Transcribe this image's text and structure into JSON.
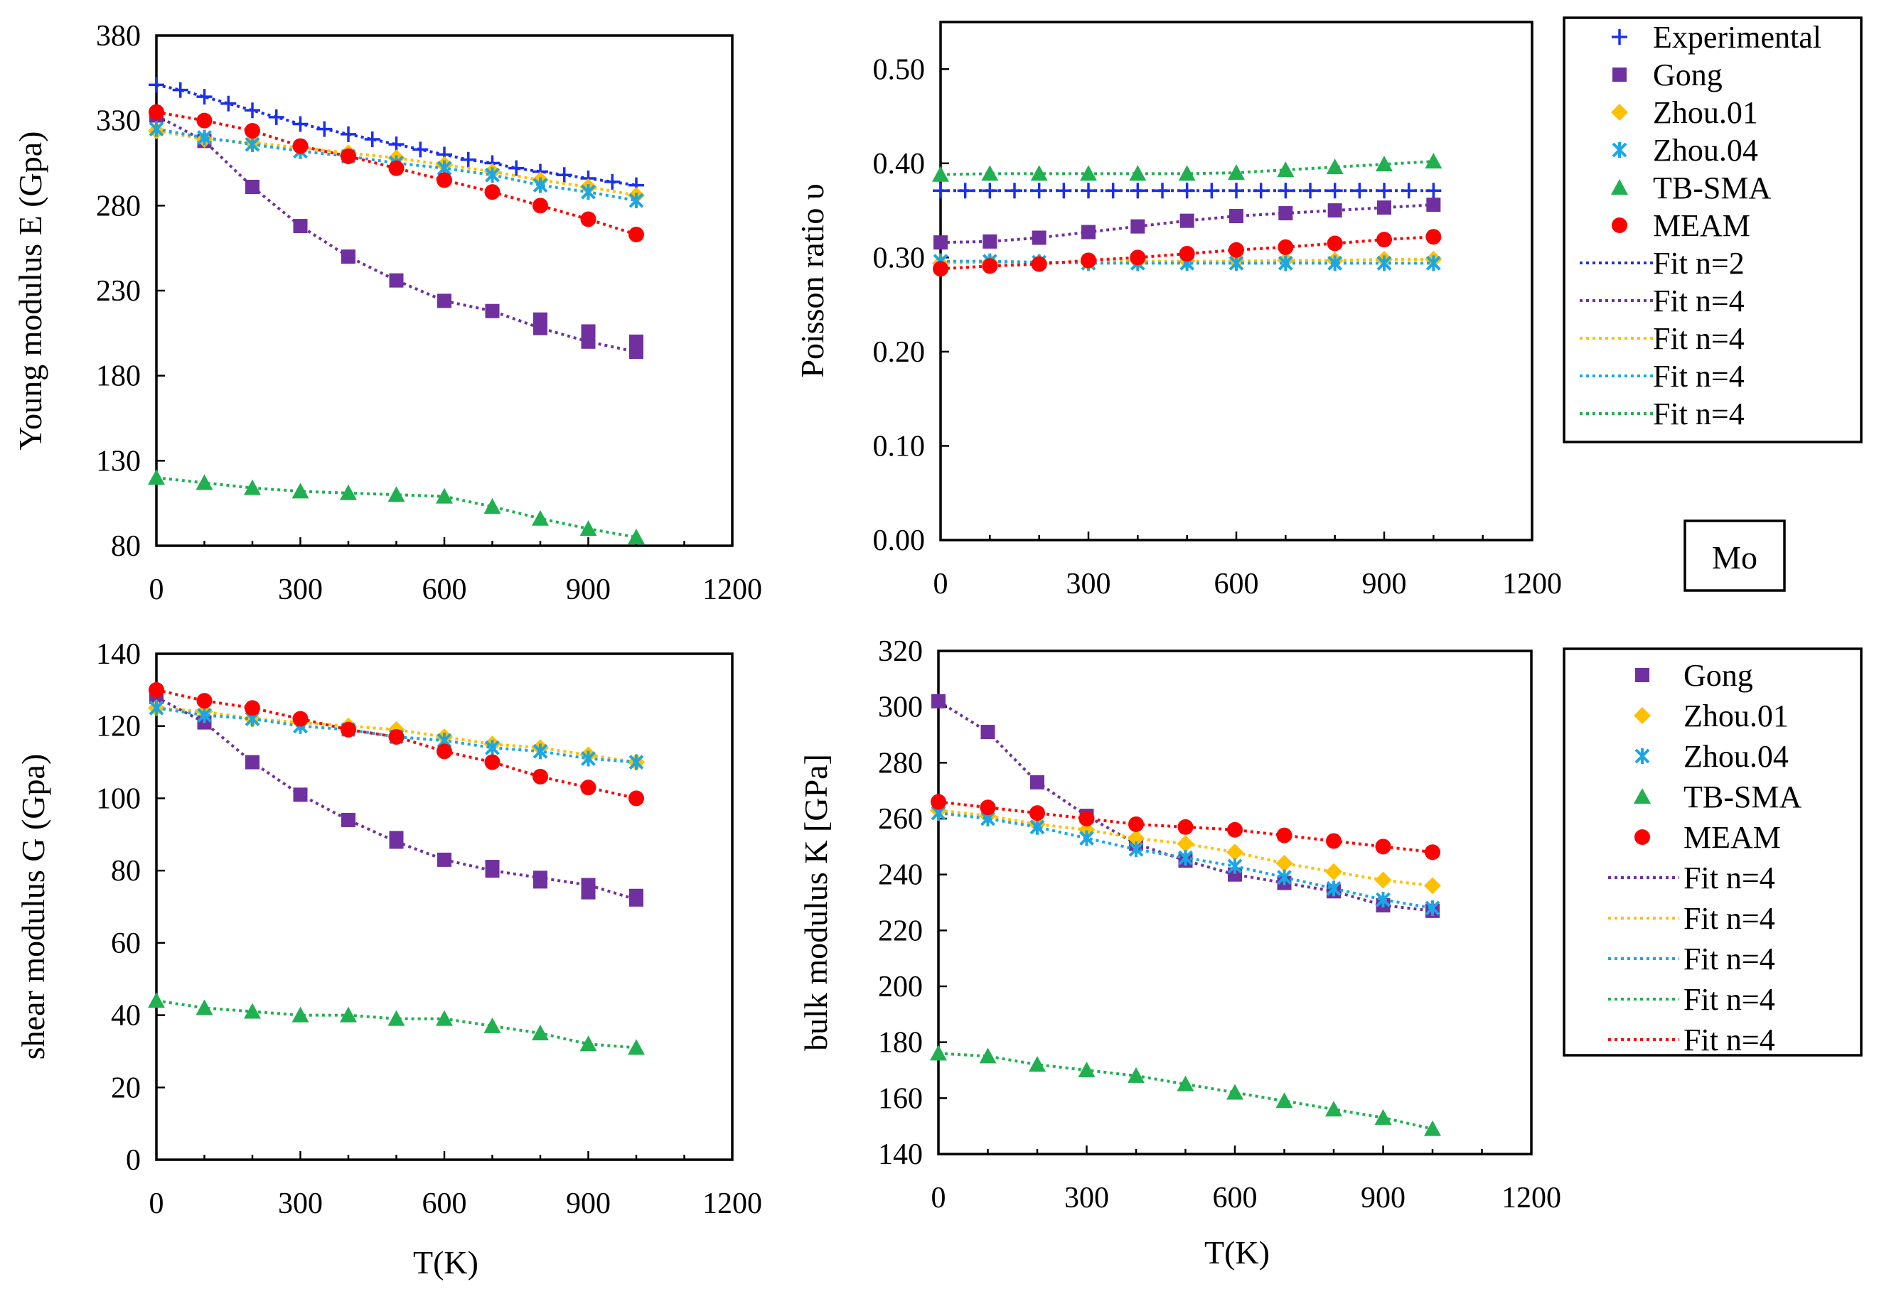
{
  "figure": {
    "material_label": "Mo",
    "legend_top": [
      "Experimental",
      "Gong",
      "Zhou.01",
      "Zhou.04",
      "TB-SMA",
      "MEAM",
      "Fit n=2",
      "Fit n=4",
      "Fit n=4",
      "Fit n=4",
      "Fit n=4"
    ],
    "legend_bottom": [
      "Gong",
      "Zhou.01",
      "Zhou.04",
      "TB-SMA",
      "MEAM",
      "Fit n=4",
      "Fit n=4",
      "Fit n=4",
      "Fit n=4",
      "Fit n=4"
    ]
  },
  "colors": {
    "experimental": "#1a2ff0",
    "gong": "#7030a0",
    "zhou01": "#ffc000",
    "zhou04": "#1aa7e6",
    "tbsma": "#20b050",
    "meam": "#ff0000",
    "fit_exp": "#1a2ff0",
    "fit_gong": "#7030a0",
    "fit_zhou01": "#ffc000",
    "fit_zhou04": "#1aa7e6",
    "fit_tbsma": "#20b050",
    "fit_meam": "#ff0000"
  },
  "chart_data": [
    {
      "id": "young",
      "type": "scatter",
      "title": "",
      "xlabel": "",
      "ylabel": "Young modulus E (Gpa)",
      "xlim": [
        0,
        1200
      ],
      "ylim": [
        80,
        380
      ],
      "xticks": [
        0,
        300,
        600,
        900,
        1200
      ],
      "yticks": [
        80,
        130,
        180,
        230,
        280,
        330,
        380
      ],
      "x": [
        0,
        100,
        200,
        300,
        400,
        500,
        600,
        700,
        800,
        900,
        1000
      ],
      "series": [
        {
          "key": "experimental",
          "name": "Experimental",
          "marker": "plus",
          "x": [
            0,
            50,
            100,
            150,
            200,
            250,
            300,
            350,
            400,
            450,
            500,
            550,
            600,
            650,
            700,
            750,
            800,
            850,
            900,
            950,
            1000
          ],
          "values": [
            351,
            348,
            344,
            340,
            336,
            332,
            328,
            325,
            322,
            319,
            316,
            313,
            310,
            307,
            305,
            302,
            300,
            298,
            296,
            294,
            292
          ]
        },
        {
          "key": "gong",
          "name": "Gong",
          "marker": "square",
          "values": [
            333,
            318,
            291,
            268,
            250,
            236,
            224,
            218,
            208,
            200,
            194
          ]
        },
        {
          "key": "gong2",
          "name": "Gong",
          "marker": "square",
          "x": [
            800,
            900,
            1000
          ],
          "values": [
            213,
            206,
            200
          ]
        },
        {
          "key": "zhou01",
          "name": "Zhou.01",
          "marker": "diamond",
          "values": [
            324,
            319,
            317,
            314,
            311,
            308,
            304,
            300,
            295,
            291,
            286
          ]
        },
        {
          "key": "zhou04",
          "name": "Zhou.04",
          "marker": "x",
          "values": [
            325,
            320,
            316,
            312,
            309,
            305,
            302,
            298,
            292,
            288,
            283
          ]
        },
        {
          "key": "tbsma",
          "name": "TB-SMA",
          "marker": "triangle",
          "values": [
            120,
            117,
            114,
            112,
            111,
            110,
            109,
            103,
            96,
            90,
            85
          ]
        },
        {
          "key": "meam",
          "name": "MEAM",
          "marker": "circle",
          "values": [
            335,
            330,
            324,
            315,
            309,
            302,
            295,
            288,
            280,
            272,
            263
          ]
        }
      ]
    },
    {
      "id": "poisson",
      "type": "scatter",
      "title": "",
      "xlabel": "",
      "ylabel": "Poisson ratio υ",
      "xlim": [
        0,
        1200
      ],
      "ylim": [
        0.0,
        0.55
      ],
      "xticks": [
        0,
        300,
        600,
        900,
        1200
      ],
      "yticks": [
        0.0,
        0.1,
        0.2,
        0.3,
        0.4,
        0.5
      ],
      "ytick_labels": [
        "0.00",
        "0.10",
        "0.20",
        "0.30",
        "0.40",
        "0.50"
      ],
      "x": [
        0,
        100,
        200,
        300,
        400,
        500,
        600,
        700,
        800,
        900,
        1000
      ],
      "series": [
        {
          "key": "experimental",
          "name": "Experimental",
          "marker": "plus",
          "x": [
            0,
            50,
            100,
            150,
            200,
            250,
            300,
            350,
            400,
            450,
            500,
            550,
            600,
            650,
            700,
            750,
            800,
            850,
            900,
            950,
            1000
          ],
          "values": [
            0.371,
            0.371,
            0.371,
            0.371,
            0.371,
            0.371,
            0.371,
            0.371,
            0.371,
            0.371,
            0.371,
            0.371,
            0.371,
            0.371,
            0.371,
            0.371,
            0.371,
            0.371,
            0.371,
            0.371,
            0.371
          ]
        },
        {
          "key": "gong",
          "name": "Gong",
          "marker": "square",
          "values": [
            0.316,
            0.317,
            0.321,
            0.327,
            0.333,
            0.339,
            0.344,
            0.347,
            0.35,
            0.353,
            0.356
          ]
        },
        {
          "key": "zhou01",
          "name": "Zhou.01",
          "marker": "diamond",
          "values": [
            0.294,
            0.295,
            0.295,
            0.295,
            0.296,
            0.296,
            0.296,
            0.297,
            0.297,
            0.298,
            0.298
          ]
        },
        {
          "key": "zhou04",
          "name": "Zhou.04",
          "marker": "x",
          "values": [
            0.296,
            0.296,
            0.295,
            0.294,
            0.294,
            0.294,
            0.294,
            0.294,
            0.294,
            0.294,
            0.294
          ]
        },
        {
          "key": "tbsma",
          "name": "TB-SMA",
          "marker": "triangle",
          "values": [
            0.388,
            0.389,
            0.389,
            0.389,
            0.389,
            0.389,
            0.39,
            0.393,
            0.396,
            0.399,
            0.402
          ]
        },
        {
          "key": "meam",
          "name": "MEAM",
          "marker": "circle",
          "values": [
            0.288,
            0.291,
            0.293,
            0.297,
            0.3,
            0.304,
            0.308,
            0.311,
            0.315,
            0.319,
            0.322
          ]
        }
      ]
    },
    {
      "id": "shear",
      "type": "scatter",
      "title": "",
      "xlabel": "T(K)",
      "ylabel": "shear modulus G (Gpa)",
      "xlim": [
        0,
        1200
      ],
      "ylim": [
        0,
        140
      ],
      "xticks": [
        0,
        300,
        600,
        900,
        1200
      ],
      "yticks": [
        0,
        20,
        40,
        60,
        80,
        100,
        120,
        140
      ],
      "x": [
        0,
        100,
        200,
        300,
        400,
        500,
        600,
        700,
        800,
        900,
        1000
      ],
      "series": [
        {
          "key": "gong",
          "name": "Gong",
          "marker": "square",
          "values": [
            128,
            121,
            110,
            101,
            94,
            88,
            83,
            80,
            78,
            76,
            72
          ]
        },
        {
          "key": "gong2",
          "name": "Gong",
          "marker": "square",
          "x": [
            500,
            700,
            800,
            900,
            1000
          ],
          "values": [
            89,
            81,
            77,
            74,
            73
          ]
        },
        {
          "key": "zhou01",
          "name": "Zhou.01",
          "marker": "diamond",
          "values": [
            125,
            124,
            122,
            121,
            120,
            119,
            117,
            115,
            114,
            112,
            110
          ]
        },
        {
          "key": "zhou04",
          "name": "Zhou.04",
          "marker": "x",
          "values": [
            125,
            123,
            122,
            120,
            119,
            117,
            116,
            114,
            113,
            111,
            110
          ]
        },
        {
          "key": "tbsma",
          "name": "TB-SMA",
          "marker": "triangle",
          "values": [
            44,
            42,
            41,
            40,
            40,
            39,
            39,
            37,
            35,
            32,
            31
          ]
        },
        {
          "key": "meam",
          "name": "MEAM",
          "marker": "circle",
          "values": [
            130,
            127,
            125,
            122,
            119,
            117,
            113,
            110,
            106,
            103,
            100
          ]
        }
      ]
    },
    {
      "id": "bulk",
      "type": "scatter",
      "title": "",
      "xlabel": "T(K)",
      "ylabel": "bulk modulus K  [GPa]",
      "xlim": [
        0,
        1200
      ],
      "ylim": [
        140,
        320
      ],
      "xticks": [
        0,
        300,
        600,
        900,
        1200
      ],
      "yticks": [
        140,
        160,
        180,
        200,
        220,
        240,
        260,
        280,
        300,
        320
      ],
      "x": [
        0,
        100,
        200,
        300,
        400,
        500,
        600,
        700,
        800,
        900,
        1000
      ],
      "series": [
        {
          "key": "gong",
          "name": "Gong",
          "marker": "square",
          "values": [
            302,
            291,
            273,
            261,
            251,
            245,
            240,
            237,
            234,
            229,
            227
          ]
        },
        {
          "key": "zhou01",
          "name": "Zhou.01",
          "marker": "diamond",
          "values": [
            263,
            261,
            258,
            256,
            253,
            251,
            248,
            244,
            241,
            238,
            236
          ]
        },
        {
          "key": "zhou04",
          "name": "Zhou.04",
          "marker": "x",
          "values": [
            262,
            260,
            257,
            253,
            249,
            246,
            243,
            239,
            235,
            231,
            228
          ]
        },
        {
          "key": "tbsma",
          "name": "TB-SMA",
          "marker": "triangle",
          "values": [
            176,
            175,
            172,
            170,
            168,
            165,
            162,
            159,
            156,
            153,
            149
          ]
        },
        {
          "key": "meam",
          "name": "MEAM",
          "marker": "circle",
          "values": [
            266,
            264,
            262,
            260,
            258,
            257,
            256,
            254,
            252,
            250,
            248
          ]
        }
      ]
    }
  ]
}
